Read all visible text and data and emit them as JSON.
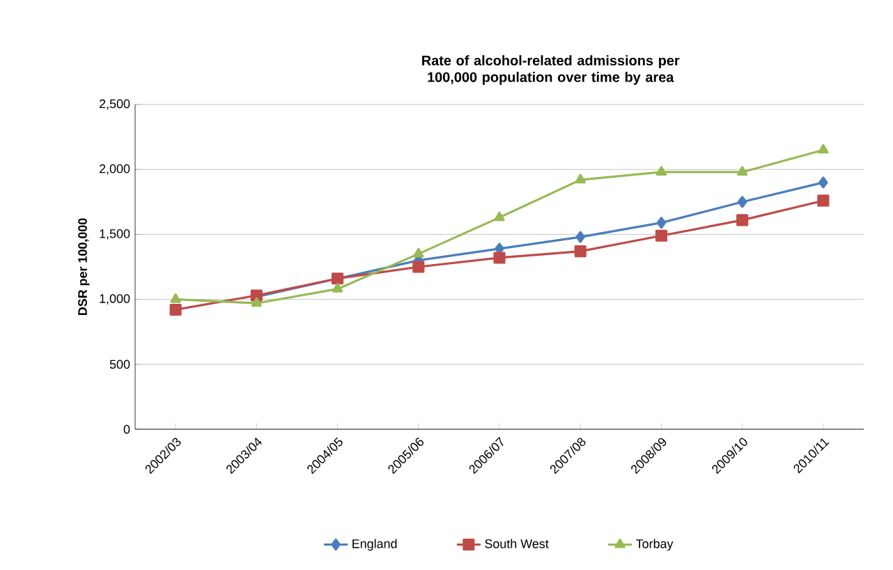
{
  "chart_data": {
    "type": "line",
    "title": "Rate of alcohol-related admissions per 100,000 population over time by area",
    "ylabel": "DSR per 100,000",
    "categories": [
      "2002/03",
      "2003/04",
      "2004/05",
      "2005/06",
      "2006/07",
      "2007/08",
      "2008/09",
      "2009/10",
      "2010/11"
    ],
    "series": [
      {
        "name": "England",
        "color": "#4a7ebb",
        "marker": "diamond",
        "values": [
          null,
          1020,
          null,
          1300,
          1390,
          1480,
          1590,
          1750,
          1900
        ]
      },
      {
        "name": "South West",
        "color": "#be4b48",
        "marker": "square",
        "values": [
          920,
          1030,
          1160,
          1250,
          1320,
          1370,
          1490,
          1610,
          1760
        ]
      },
      {
        "name": "Torbay",
        "color": "#98b954",
        "marker": "triangle",
        "values": [
          1000,
          970,
          1080,
          1350,
          1630,
          1920,
          1980,
          1980,
          2150
        ]
      }
    ],
    "ylim": [
      0,
      2500
    ],
    "yticks": [
      {
        "value": 0,
        "label": "0"
      },
      {
        "value": 500,
        "label": "500"
      },
      {
        "value": 1000,
        "label": "1,000"
      },
      {
        "value": 1500,
        "label": "1,500"
      },
      {
        "value": 2000,
        "label": "2,000"
      },
      {
        "value": 2500,
        "label": "2,500"
      }
    ],
    "grid": "y",
    "legend": "bottom"
  }
}
